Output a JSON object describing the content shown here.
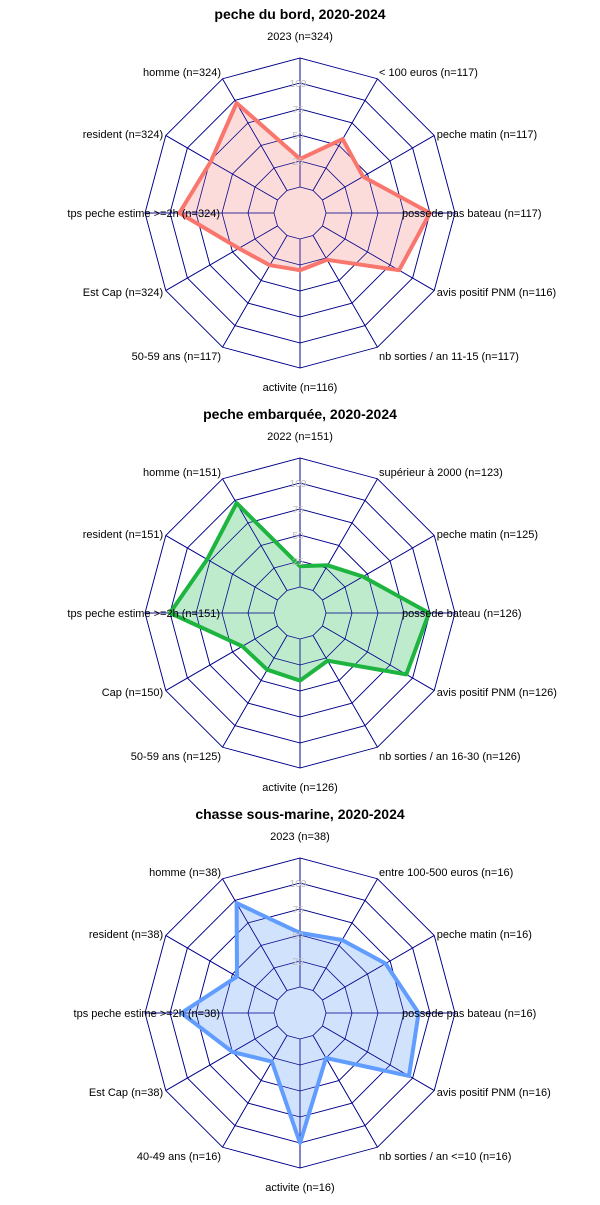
{
  "chart_data": [
    {
      "type": "radar",
      "title": "peche du bord, 2020-2024",
      "ticks": [
        "0",
        "25",
        "50",
        "75",
        "100"
      ],
      "rlim": [
        0,
        100
      ],
      "color": "#f8766d",
      "fill": "#fcd6d3",
      "axes": [
        "2023 (n=324)",
        "< 100 euros (n=117)",
        "peche matin (n=117)",
        "possede pas bateau (n=117)",
        "avis positif PNM (n=116)",
        "nb sorties / an 11-15 (n=117)",
        "activite (n=116)",
        "50-59 ans (n=117)",
        "Est Cap (n=324)",
        "tps peche estime >=2h (n=324)",
        "resident (n=324)",
        "homme (n=324)"
      ],
      "values": [
        27,
        57,
        45,
        100,
        85,
        27,
        30,
        33,
        43,
        91,
        74,
        97
      ]
    },
    {
      "type": "radar",
      "title": "peche embarquée, 2020-2024",
      "ticks": [
        "0",
        "25",
        "50",
        "75",
        "100"
      ],
      "rlim": [
        0,
        100
      ],
      "color": "#1db43f",
      "fill": "#b3e8c3",
      "axes": [
        "2022 (n=151)",
        "supérieur à 2000 (n=123)",
        "peche matin (n=125)",
        "possede bateau (n=126)",
        "avis positif PNM (n=126)",
        "nb sorties / an 16-30 (n=126)",
        "activite (n=126)",
        "50-59 ans (n=125)",
        "Cap (n=150)",
        "tps peche estime >=2h (n=151)",
        "resident (n=151)",
        "homme (n=151)"
      ],
      "values": [
        20,
        28,
        45,
        99,
        93,
        28,
        40,
        38,
        39,
        100,
        78,
        97
      ]
    },
    {
      "type": "radar",
      "title": "chasse sous-marine, 2020-2024",
      "ticks": [
        "0",
        "25",
        "50",
        "75",
        "100"
      ],
      "rlim": [
        0,
        100
      ],
      "color": "#619cff",
      "fill": "#c9ddfb",
      "axes": [
        "2023 (n=38)",
        "entre 100-500 euros (n=16)",
        "peche matin (n=16)",
        "possede pas bateau (n=16)",
        "avis positif PNM (n=16)",
        "nb sorties / an <=10 (n=16)",
        "activite (n=16)",
        "40-49 ans (n=16)",
        "Est Cap (n=38)",
        "tps peche estime >=2h (n=38)",
        "resident (n=38)",
        "homme (n=38)"
      ],
      "values": [
        52,
        56,
        70,
        89,
        96,
        25,
        100,
        29,
        50,
        89,
        45,
        97
      ]
    }
  ]
}
